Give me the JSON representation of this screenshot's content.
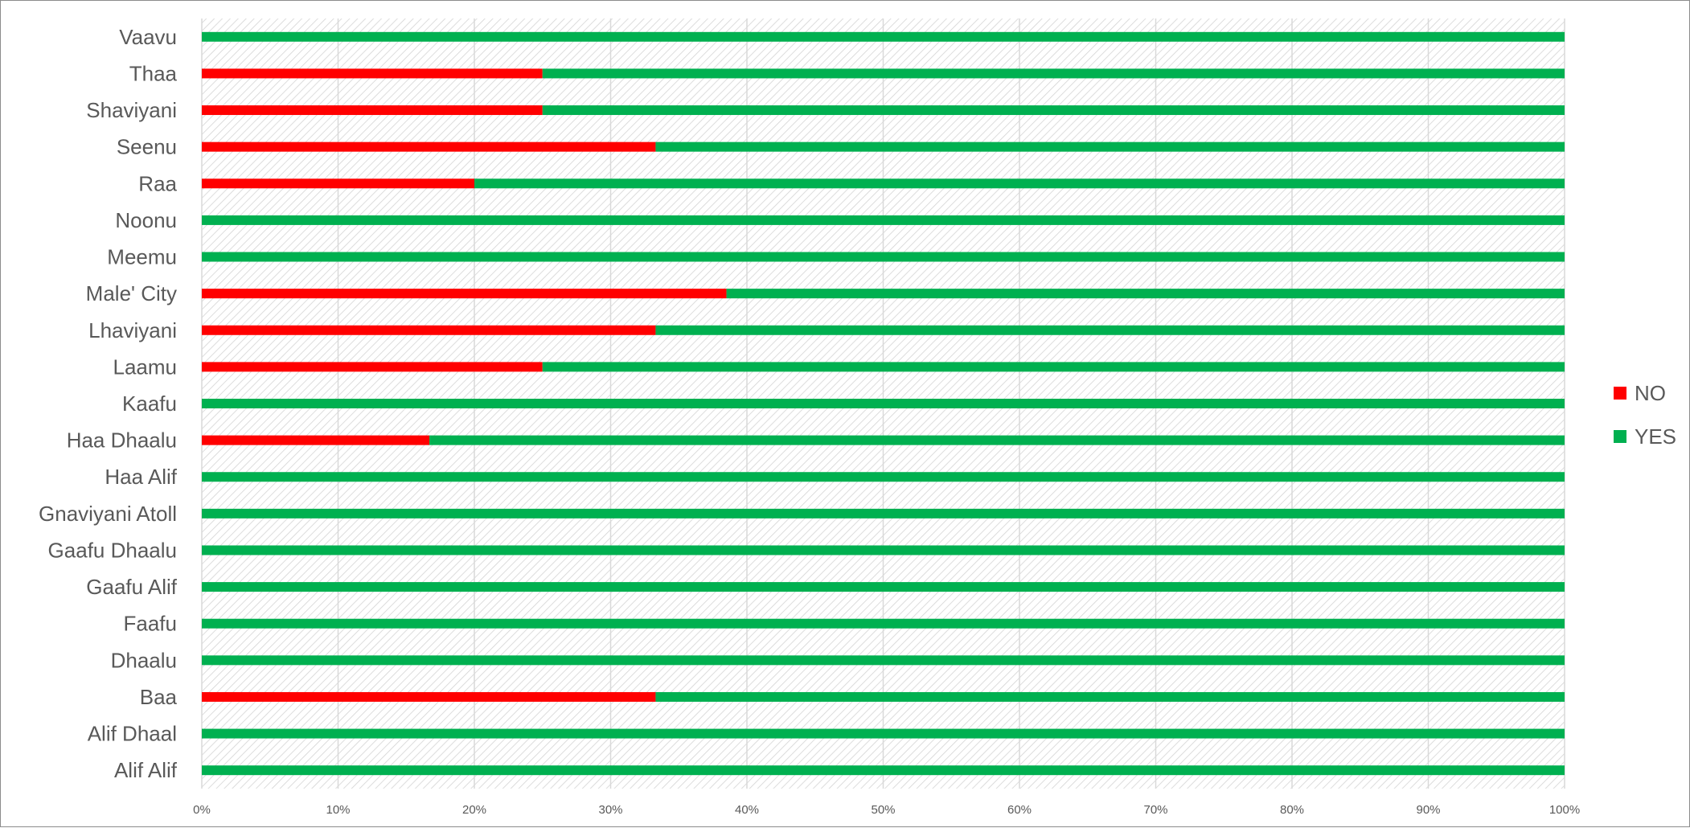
{
  "chart_data": {
    "type": "bar",
    "orientation": "horizontal",
    "stacked": "percent",
    "categories": [
      "Alif Alif",
      "Alif Dhaal",
      "Baa",
      "Dhaalu",
      "Faafu",
      "Gaafu Alif",
      "Gaafu Dhaalu",
      "Gnaviyani Atoll",
      "Haa Alif",
      "Haa Dhaalu",
      "Kaafu",
      "Laamu",
      "Lhaviyani",
      "Male' City",
      "Meemu",
      "Noonu",
      "Raa",
      "Seenu",
      "Shaviyani",
      "Thaa",
      "Vaavu"
    ],
    "series": [
      {
        "name": "NO",
        "color": "#ff0000",
        "values": [
          0,
          0,
          33.3,
          0,
          0,
          0,
          0,
          0,
          0,
          16.7,
          0,
          25,
          33.3,
          38.5,
          0,
          0,
          20,
          33.3,
          25,
          25,
          0
        ]
      },
      {
        "name": "YES",
        "color": "#00b050",
        "values": [
          100,
          100,
          66.7,
          100,
          100,
          100,
          100,
          100,
          100,
          83.3,
          100,
          75,
          66.7,
          61.5,
          100,
          100,
          80,
          66.7,
          75,
          75,
          100
        ]
      }
    ],
    "xlim": [
      0,
      100
    ],
    "x_ticks": [
      "0%",
      "10%",
      "20%",
      "30%",
      "40%",
      "50%",
      "60%",
      "70%",
      "80%",
      "90%",
      "100%"
    ],
    "xlabel": "",
    "ylabel": "",
    "title": "",
    "grid": "vertical",
    "plot_background": "diagonal-hatch",
    "legend": {
      "position": "right",
      "entries": [
        "NO",
        "YES"
      ]
    }
  }
}
